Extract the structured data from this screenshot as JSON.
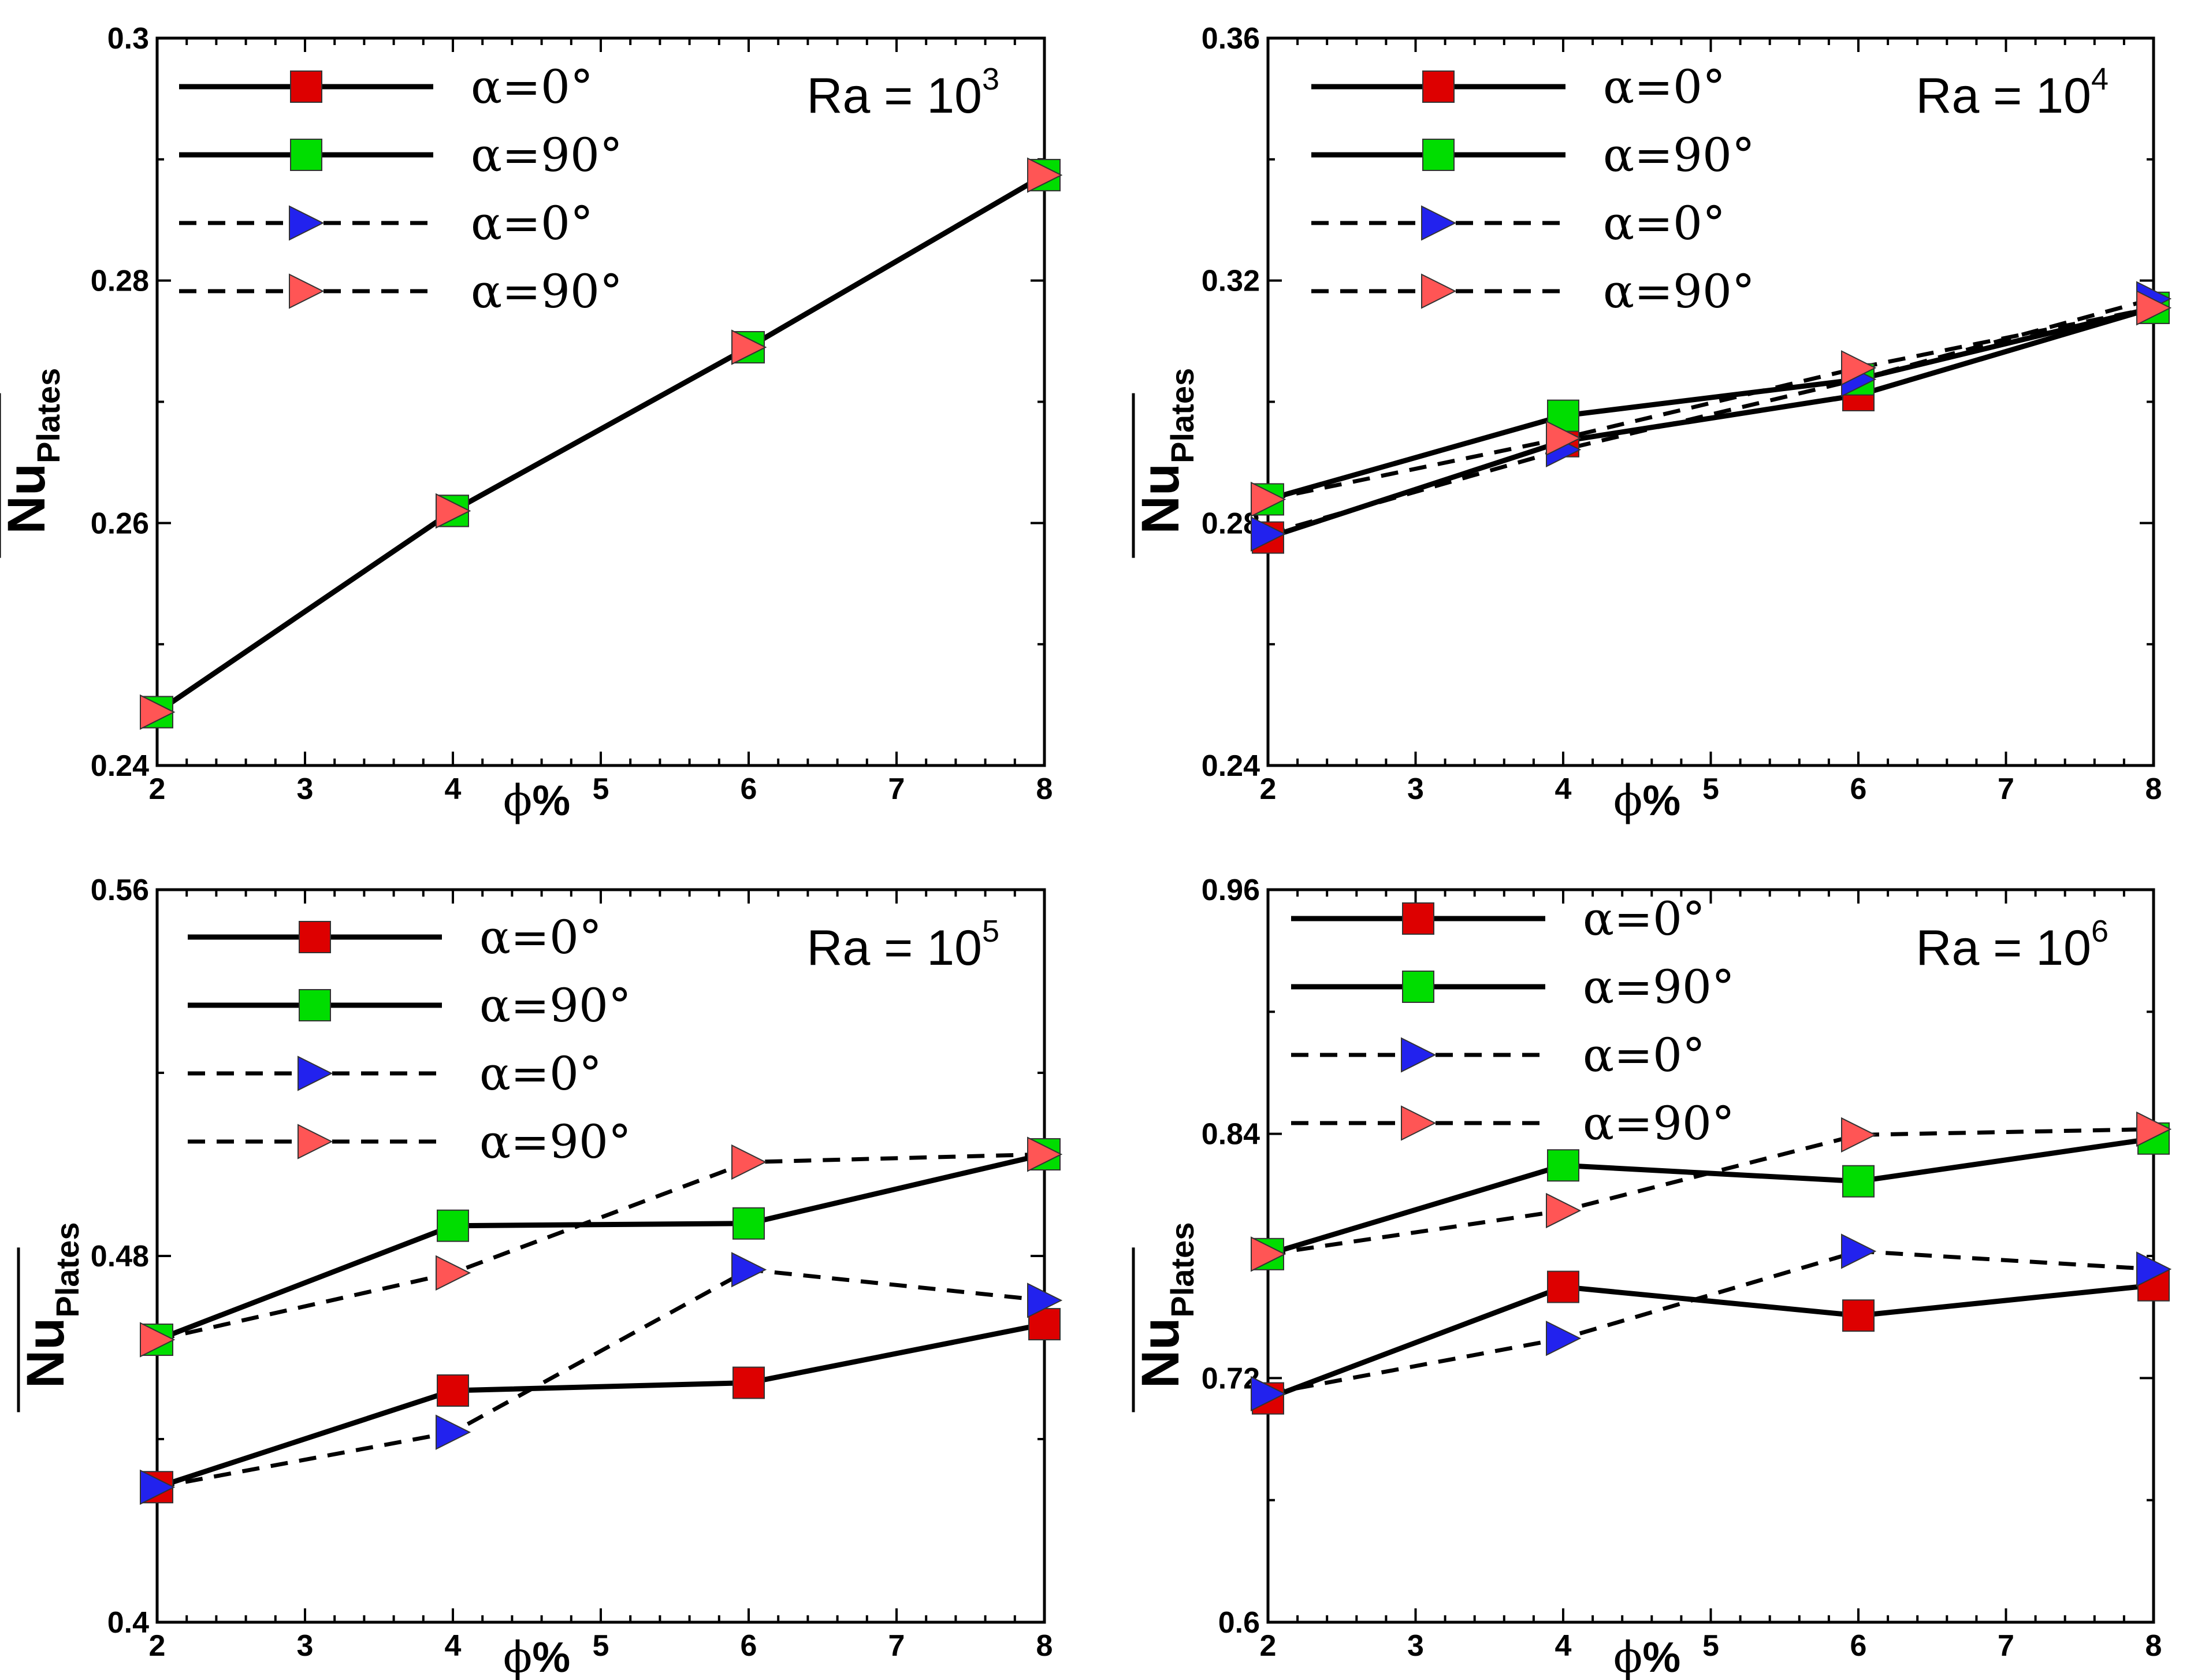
{
  "chart_data": [
    {
      "type": "line",
      "panel": "top-left",
      "annotation": {
        "base": "Ra = 10",
        "exponent": "3"
      },
      "xlabel": {
        "symbol": "ϕ",
        "unit": "%"
      },
      "ylabel": {
        "main": "Nu",
        "sub": "Plates"
      },
      "xlim": [
        2,
        8
      ],
      "ylim": [
        0.24,
        0.3
      ],
      "xticks": [
        "2",
        "3",
        "4",
        "5",
        "6",
        "7",
        "8"
      ],
      "yticks": [
        "0.24",
        "0.26",
        "0.28",
        "0.3"
      ],
      "x": [
        2,
        4,
        6,
        8
      ],
      "series": [
        {
          "name": "α=0°",
          "style": "solid",
          "marker": "square",
          "color": "#dd0000",
          "values": [
            0.2444,
            0.261,
            0.2745,
            0.2887
          ]
        },
        {
          "name": "α=90°",
          "style": "solid",
          "marker": "square",
          "color": "#00dd00",
          "values": [
            0.2444,
            0.261,
            0.2745,
            0.2887
          ]
        },
        {
          "name": "α=0°",
          "style": "dashed",
          "marker": "triangle-right",
          "color": "#2222ee",
          "values": [
            0.2444,
            0.261,
            0.2745,
            0.2887
          ]
        },
        {
          "name": "α=90°",
          "style": "dashed",
          "marker": "triangle-right",
          "color": "#ff5555",
          "values": [
            0.2444,
            0.261,
            0.2745,
            0.2887
          ]
        }
      ]
    },
    {
      "type": "line",
      "panel": "top-right",
      "annotation": {
        "base": "Ra = 10",
        "exponent": "4"
      },
      "xlabel": {
        "symbol": "ϕ",
        "unit": "%"
      },
      "ylabel": {
        "main": "Nu",
        "sub": "Plates"
      },
      "xlim": [
        2,
        8
      ],
      "ylim": [
        0.24,
        0.36
      ],
      "xticks": [
        "2",
        "3",
        "4",
        "5",
        "6",
        "7",
        "8"
      ],
      "yticks": [
        "0.24",
        "0.28",
        "0.32",
        "0.36"
      ],
      "x": [
        2,
        4,
        6,
        8
      ],
      "series": [
        {
          "name": "α=0°",
          "style": "solid",
          "marker": "square",
          "color": "#dd0000",
          "values": [
            0.2776,
            0.2935,
            0.3011,
            0.3155
          ]
        },
        {
          "name": "α=90°",
          "style": "solid",
          "marker": "square",
          "color": "#00dd00",
          "values": [
            0.2839,
            0.2977,
            0.3037,
            0.3155
          ]
        },
        {
          "name": "α=0°",
          "style": "dashed",
          "marker": "triangle-right",
          "color": "#2222ee",
          "values": [
            0.2782,
            0.2921,
            0.3037,
            0.317
          ]
        },
        {
          "name": "α=90°",
          "style": "dashed",
          "marker": "triangle-right",
          "color": "#ff5555",
          "values": [
            0.2839,
            0.294,
            0.3056,
            0.3155
          ]
        }
      ]
    },
    {
      "type": "line",
      "panel": "bottom-left",
      "annotation": {
        "base": "Ra = 10",
        "exponent": "5"
      },
      "xlabel": {
        "symbol": "ϕ",
        "unit": "%"
      },
      "ylabel": {
        "main": "Nu",
        "sub": "Plates"
      },
      "xlim": [
        2,
        8
      ],
      "ylim": [
        0.4,
        0.56
      ],
      "xticks": [
        "2",
        "3",
        "4",
        "5",
        "6",
        "7",
        "8"
      ],
      "yticks": [
        "0.4",
        "0.48",
        "0.56"
      ],
      "x": [
        2,
        4,
        6,
        8
      ],
      "series": [
        {
          "name": "α=0°",
          "style": "solid",
          "marker": "square",
          "color": "#dd0000",
          "values": [
            0.4295,
            0.4506,
            0.4523,
            0.4651
          ]
        },
        {
          "name": "α=90°",
          "style": "solid",
          "marker": "square",
          "color": "#00dd00",
          "values": [
            0.4617,
            0.4866,
            0.4871,
            0.5022
          ]
        },
        {
          "name": "α=0°",
          "style": "dashed",
          "marker": "triangle-right",
          "color": "#2222ee",
          "values": [
            0.4295,
            0.4415,
            0.477,
            0.4703
          ]
        },
        {
          "name": "α=90°",
          "style": "dashed",
          "marker": "triangle-right",
          "color": "#ff5555",
          "values": [
            0.4617,
            0.4763,
            0.5005,
            0.5022
          ]
        }
      ]
    },
    {
      "type": "line",
      "panel": "bottom-right",
      "annotation": {
        "base": "Ra = 10",
        "exponent": "6"
      },
      "xlabel": {
        "symbol": "ϕ",
        "unit": "%"
      },
      "ylabel": {
        "main": "Nu",
        "sub": "Plates"
      },
      "xlim": [
        2,
        8
      ],
      "ylim": [
        0.6,
        0.96
      ],
      "xticks": [
        "2",
        "3",
        "4",
        "5",
        "6",
        "7",
        "8"
      ],
      "yticks": [
        "0.6",
        "0.72",
        "0.84",
        "0.96"
      ],
      "x": [
        2,
        4,
        6,
        8
      ],
      "series": [
        {
          "name": "α=0°",
          "style": "solid",
          "marker": "square",
          "color": "#dd0000",
          "values": [
            0.71,
            0.7648,
            0.7507,
            0.7656
          ]
        },
        {
          "name": "α=90°",
          "style": "solid",
          "marker": "square",
          "color": "#00dd00",
          "values": [
            0.7809,
            0.8245,
            0.8167,
            0.8377
          ]
        },
        {
          "name": "α=0°",
          "style": "dashed",
          "marker": "triangle-right",
          "color": "#2222ee",
          "values": [
            0.7123,
            0.7395,
            0.7823,
            0.7735
          ]
        },
        {
          "name": "α=90°",
          "style": "dashed",
          "marker": "triangle-right",
          "color": "#ff5555",
          "values": [
            0.7809,
            0.8023,
            0.8395,
            0.8423
          ]
        }
      ]
    }
  ]
}
